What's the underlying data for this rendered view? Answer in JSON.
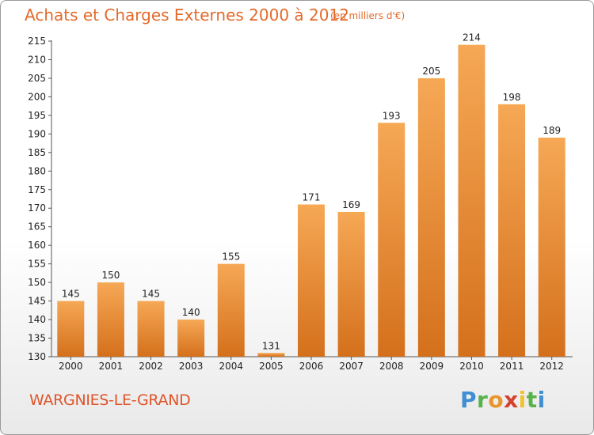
{
  "title": "Achats et Charges Externes 2000 à 2012",
  "unit": "(en milliers d'€)",
  "city": "WARGNIES-LE-GRAND",
  "logo": {
    "letters": [
      "P",
      "r",
      "o",
      "x",
      "i",
      "t",
      "i"
    ]
  },
  "colors": {
    "bar_top": "#f6a855",
    "bar_bottom": "#d4701c",
    "title": "#e36a2a",
    "grid": "#b0b0b0"
  },
  "chart_data": {
    "type": "bar",
    "title": "Achats et Charges Externes 2000 à 2012",
    "subtitle": "(en milliers d'€)",
    "xlabel": "",
    "ylabel": "",
    "categories": [
      "2000",
      "2001",
      "2002",
      "2003",
      "2004",
      "2005",
      "2006",
      "2007",
      "2008",
      "2009",
      "2010",
      "2011",
      "2012"
    ],
    "values": [
      145,
      150,
      145,
      140,
      155,
      131,
      171,
      169,
      193,
      205,
      214,
      198,
      189
    ],
    "ylim": [
      130,
      215
    ],
    "yticks": [
      130,
      135,
      140,
      145,
      150,
      155,
      160,
      165,
      170,
      175,
      180,
      185,
      190,
      195,
      200,
      205,
      210,
      215
    ],
    "grid": false,
    "legend": "none"
  }
}
